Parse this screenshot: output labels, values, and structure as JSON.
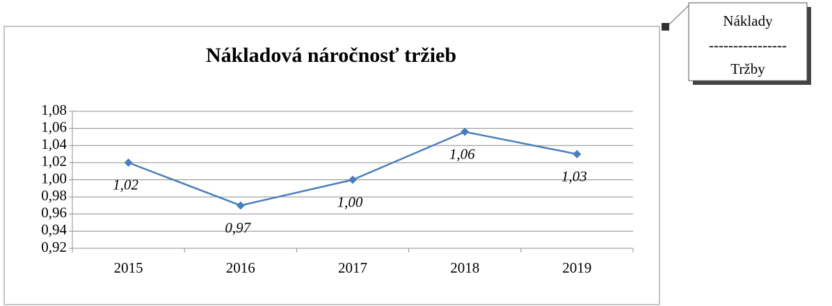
{
  "chart_data": {
    "type": "line",
    "title": "Nákladová náročnosť tržieb",
    "categories": [
      "2015",
      "2016",
      "2017",
      "2018",
      "2019"
    ],
    "values": [
      1.02,
      0.97,
      1.0,
      1.056,
      1.03
    ],
    "value_labels": [
      "1,02",
      "0,97",
      "1,00",
      "1,06",
      "1,03"
    ],
    "color": "#4a7ebb",
    "ylim": [
      0.92,
      1.08
    ],
    "yticks": [
      {
        "value": 0.92,
        "label": "0,92"
      },
      {
        "value": 0.94,
        "label": "0,94"
      },
      {
        "value": 0.96,
        "label": "0,96"
      },
      {
        "value": 0.98,
        "label": "0,98"
      },
      {
        "value": 1.0,
        "label": "1,00"
      },
      {
        "value": 1.02,
        "label": "1,02"
      },
      {
        "value": 1.04,
        "label": "1,04"
      },
      {
        "value": 1.06,
        "label": "1,06"
      },
      {
        "value": 1.08,
        "label": "1,08"
      }
    ],
    "grid": true,
    "annotation": {
      "numerator": "Náklady",
      "separator": "----------------",
      "denominator": "Tržby"
    }
  }
}
